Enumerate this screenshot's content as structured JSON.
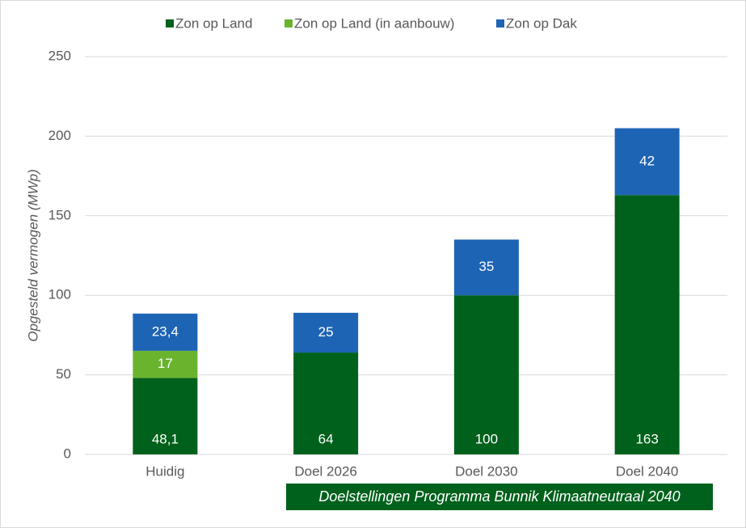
{
  "chart_data": {
    "type": "stacked_bar",
    "categories": [
      "Huidig",
      "Doel 2026",
      "Doel 2030",
      "Doel 2040"
    ],
    "series": [
      {
        "name": "Zon op Land",
        "color": "#00611c",
        "values": [
          48.1,
          64,
          100,
          163
        ],
        "value_labels": [
          "48,1",
          "64",
          "100",
          "163"
        ]
      },
      {
        "name": "Zon op Land (in aanbouw)",
        "color": "#6ab42d",
        "values": [
          17,
          null,
          null,
          null
        ],
        "value_labels": [
          "17",
          null,
          null,
          null
        ]
      },
      {
        "name": "Zon op Dak",
        "color": "#1e64b4",
        "values": [
          23.4,
          25,
          35,
          42
        ],
        "value_labels": [
          "23,4",
          "25",
          "35",
          "42"
        ]
      }
    ],
    "y_label": "Opgesteld vermogen (MWp)",
    "annotation": "Doelstellingen Programma Bunnik Klimaatneutraal 2040",
    "ylim": [
      0,
      250
    ],
    "yticks": [
      0,
      50,
      100,
      150,
      200,
      250
    ],
    "grid": true,
    "legend": "top"
  }
}
